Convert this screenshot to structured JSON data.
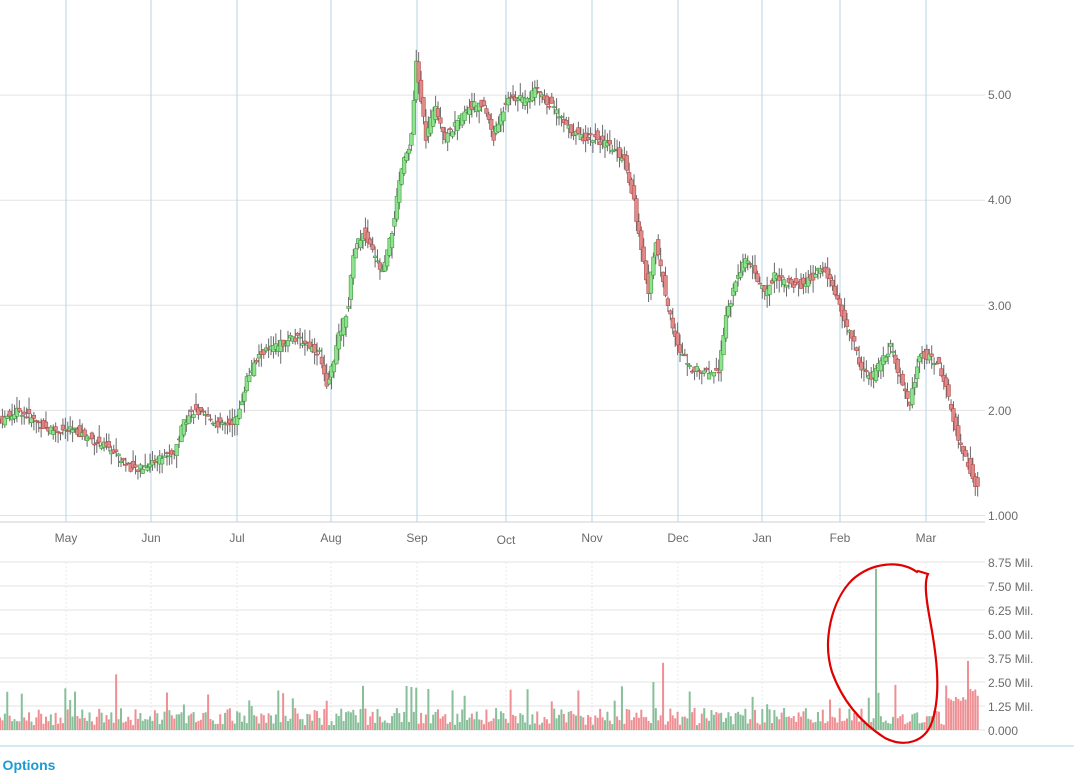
{
  "footer": {
    "chart_options_label": "t Options"
  },
  "colors": {
    "up_fill": "#8fe38f",
    "up_stroke": "#3f9a3f",
    "down_fill": "#e08a8a",
    "down_stroke": "#b44d4d",
    "wick": "#6a6a6a",
    "vol_up": "#88bf9a",
    "vol_down": "#ee8f93",
    "grid": "#e3e3e3",
    "month_line": "#b7d3e6",
    "annotation": "#e00000",
    "axis_text": "#6b6b6b",
    "link": "#1b9bd1"
  },
  "chart_data": [
    {
      "type": "candlestick",
      "x_axis": {
        "tick_labels": [
          "May",
          "Jun",
          "Jul",
          "Aug",
          "Sep",
          "Oct",
          "Nov",
          "Dec",
          "Jan",
          "Feb",
          "Mar"
        ]
      },
      "y_axis": {
        "tick_labels": [
          "1.000",
          "2.00",
          "3.00",
          "4.00",
          "5.00"
        ],
        "ylim": [
          0.95,
          5.95
        ]
      },
      "grid": true,
      "anchors": [
        [
          0,
          1.9
        ],
        [
          8,
          2.0
        ],
        [
          20,
          1.82
        ],
        [
          32,
          1.8
        ],
        [
          44,
          1.65
        ],
        [
          52,
          1.5
        ],
        [
          56,
          1.42
        ],
        [
          66,
          1.55
        ],
        [
          72,
          1.6
        ],
        [
          76,
          1.9
        ],
        [
          80,
          2.0
        ],
        [
          92,
          1.85
        ],
        [
          98,
          1.92
        ],
        [
          102,
          2.3
        ],
        [
          108,
          2.55
        ],
        [
          114,
          2.6
        ],
        [
          120,
          2.7
        ],
        [
          126,
          2.65
        ],
        [
          132,
          2.55
        ],
        [
          135,
          2.2
        ],
        [
          140,
          2.7
        ],
        [
          144,
          3.0
        ],
        [
          146,
          3.5
        ],
        [
          150,
          3.7
        ],
        [
          154,
          3.5
        ],
        [
          158,
          3.3
        ],
        [
          162,
          3.7
        ],
        [
          164,
          4.0
        ],
        [
          166,
          4.3
        ],
        [
          170,
          4.6
        ],
        [
          172,
          5.3
        ],
        [
          176,
          4.6
        ],
        [
          180,
          4.9
        ],
        [
          184,
          4.6
        ],
        [
          188,
          4.7
        ],
        [
          194,
          4.9
        ],
        [
          200,
          4.9
        ],
        [
          204,
          4.6
        ],
        [
          210,
          5.0
        ],
        [
          216,
          4.95
        ],
        [
          222,
          5.05
        ],
        [
          228,
          4.9
        ],
        [
          234,
          4.7
        ],
        [
          240,
          4.6
        ],
        [
          246,
          4.6
        ],
        [
          252,
          4.5
        ],
        [
          258,
          4.4
        ],
        [
          262,
          4.0
        ],
        [
          265,
          3.5
        ],
        [
          268,
          3.15
        ],
        [
          271,
          3.6
        ],
        [
          276,
          3.0
        ],
        [
          280,
          2.6
        ],
        [
          286,
          2.4
        ],
        [
          292,
          2.35
        ],
        [
          297,
          2.4
        ],
        [
          300,
          2.9
        ],
        [
          304,
          3.2
        ],
        [
          308,
          3.45
        ],
        [
          312,
          3.3
        ],
        [
          316,
          3.1
        ],
        [
          320,
          3.3
        ],
        [
          326,
          3.2
        ],
        [
          332,
          3.2
        ],
        [
          340,
          3.35
        ],
        [
          344,
          3.2
        ],
        [
          348,
          2.9
        ],
        [
          352,
          2.7
        ],
        [
          356,
          2.4
        ],
        [
          360,
          2.3
        ],
        [
          364,
          2.45
        ],
        [
          368,
          2.6
        ],
        [
          372,
          2.3
        ],
        [
          376,
          2.05
        ],
        [
          380,
          2.55
        ],
        [
          384,
          2.5
        ],
        [
          388,
          2.45
        ],
        [
          392,
          2.1
        ],
        [
          396,
          1.7
        ],
        [
          400,
          1.5
        ],
        [
          404,
          1.25
        ]
      ],
      "volume": {
        "unit": "Mil.",
        "tick_labels": [
          "0.000",
          "1.25 Mil.",
          "2.50 Mil.",
          "3.75 Mil.",
          "5.00 Mil.",
          "6.25 Mil.",
          "7.50 Mil.",
          "8.75 Mil."
        ],
        "ylim": [
          0,
          8.75
        ],
        "spikes": [
          [
            48,
            2.9
          ],
          [
            150,
            2.3
          ],
          [
            172,
            2.2
          ],
          [
            270,
            2.5
          ],
          [
            274,
            3.5
          ],
          [
            362,
            8.4
          ],
          [
            400,
            3.6
          ]
        ]
      }
    }
  ],
  "annotation": {
    "shape": "hand-drawn circle around volume spike"
  }
}
